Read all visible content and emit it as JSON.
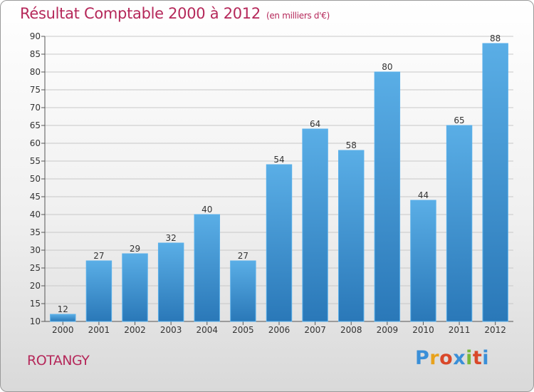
{
  "header": {
    "title": "Résultat Comptable 2000 à 2012",
    "subtitle": "(en milliers d'€)"
  },
  "footer": {
    "commune": "ROTANGY",
    "logo_letters": [
      "P",
      "r",
      "o",
      "x",
      "i",
      "t",
      "i"
    ],
    "logo_colors": [
      "#3a8fd8",
      "#e8a21c",
      "#d9482a",
      "#3a8fd8",
      "#7ab83a",
      "#d9482a",
      "#3a8fd8"
    ]
  },
  "colors": {
    "bar_top": "#5aaee6",
    "bar_bottom": "#2a78b8",
    "grid": "#c8c8c8",
    "text": "#333333",
    "accent": "#b5285a"
  },
  "chart_data": {
    "type": "bar",
    "categories": [
      "2000",
      "2001",
      "2002",
      "2003",
      "2004",
      "2005",
      "2006",
      "2007",
      "2008",
      "2009",
      "2010",
      "2011",
      "2012"
    ],
    "values": [
      12,
      27,
      29,
      32,
      40,
      27,
      54,
      64,
      58,
      80,
      44,
      65,
      88
    ],
    "ylim": [
      10,
      90
    ],
    "yticks": [
      10,
      15,
      20,
      25,
      30,
      35,
      40,
      45,
      50,
      55,
      60,
      65,
      70,
      75,
      80,
      85,
      90
    ],
    "grid": true,
    "data_labels": true
  }
}
